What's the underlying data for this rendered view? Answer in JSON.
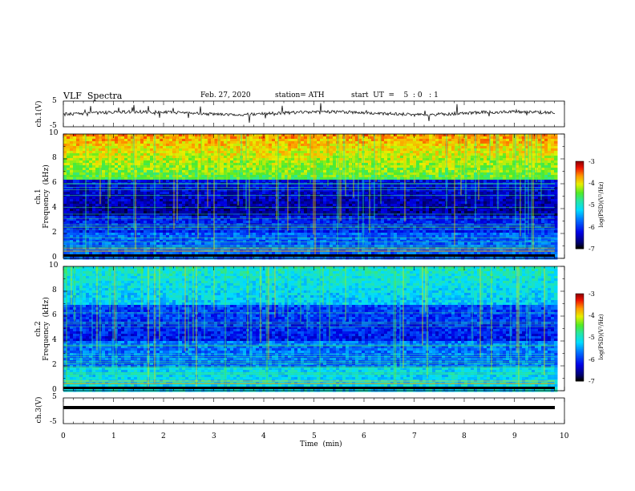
{
  "header": {
    "title": "VLF  Spectra",
    "date": "Feb. 27, 2020",
    "station": "station= ATH",
    "start": "start  UT  =    5  : 0   : 1"
  },
  "chart_data": [
    {
      "type": "line",
      "ylabel": "ch.1(V)",
      "ylim": [
        -5,
        5
      ],
      "y_ticks": [
        "5",
        "-5"
      ],
      "xlim": [
        0,
        10
      ]
    },
    {
      "type": "heatmap",
      "ylabel_line1": "ch.1",
      "ylabel_line2": "Frequency  (kHz)",
      "ylim": [
        0,
        10
      ],
      "y_ticks": [
        "0",
        "2",
        "4",
        "6",
        "8",
        "10"
      ],
      "xlim": [
        0,
        10
      ],
      "colorbar": {
        "label": "log(PSD)(V²/Hz)",
        "range": [
          -7,
          -3
        ],
        "ticks": [
          "-3",
          "-4",
          "-5",
          "-6",
          "-7"
        ]
      }
    },
    {
      "type": "heatmap",
      "ylabel_line1": "ch.2",
      "ylabel_line2": "Frequency  (kHz)",
      "ylim": [
        0,
        10
      ],
      "y_ticks": [
        "0",
        "2",
        "4",
        "6",
        "8",
        "10"
      ],
      "xlim": [
        0,
        10
      ],
      "colorbar": {
        "label": "log(PSD)(V²/Hz)",
        "range": [
          -7,
          -3
        ],
        "ticks": [
          "-3",
          "-4",
          "-5",
          "-6",
          "-7"
        ]
      }
    },
    {
      "type": "line",
      "ylabel": "ch.3(V)",
      "ylim": [
        -5,
        5
      ],
      "y_ticks": [
        "5",
        "-5"
      ],
      "xlim": [
        0,
        10
      ]
    }
  ],
  "x_axis": {
    "label": "Time  (min)",
    "ticks": [
      "0",
      "1",
      "2",
      "3",
      "4",
      "5",
      "6",
      "7",
      "8",
      "9",
      "10"
    ],
    "range": [
      0,
      10
    ]
  }
}
